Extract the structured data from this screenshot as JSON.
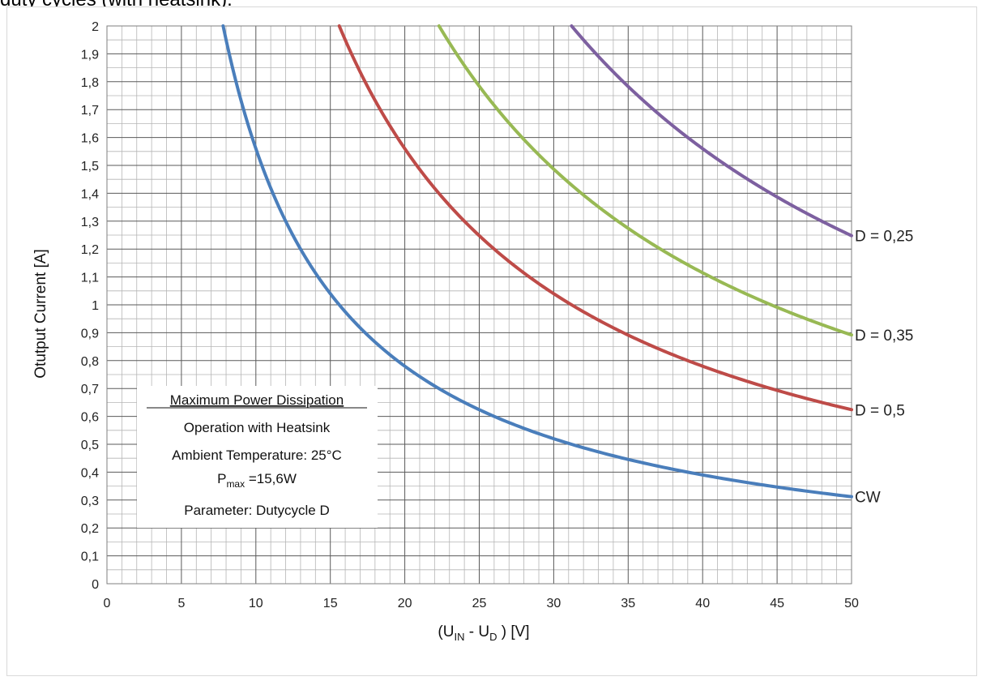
{
  "caption": "duty cycles (with heatsink).",
  "chart_data": {
    "type": "line",
    "xlabel": {
      "pre": "(U",
      "sub1": "IN",
      "mid": " - U",
      "sub2": "D",
      "post": " ) [V]"
    },
    "ylabel": "Otutput Current [A]",
    "xlim": [
      0,
      50
    ],
    "ylim": [
      0,
      2
    ],
    "x_ticks": [
      "0",
      "5",
      "10",
      "15",
      "20",
      "25",
      "30",
      "35",
      "40",
      "45",
      "50"
    ],
    "y_ticks": [
      "0",
      "0,1",
      "0,2",
      "0,3",
      "0,4",
      "0,5",
      "0,6",
      "0,7",
      "0,8",
      "0,9",
      "1",
      "1,1",
      "1,2",
      "1,3",
      "1,4",
      "1,5",
      "1,6",
      "1,7",
      "1,8",
      "1,9",
      "2"
    ],
    "grid": true,
    "legend": "curve end labels (right)",
    "series": [
      {
        "name": "CW",
        "color": "#4a7ebb",
        "power_w": 15.6,
        "x_start": 7.8,
        "x_end": 50,
        "y_at_x_end": 0.312
      },
      {
        "name": "D = 0,5",
        "color": "#be4b48",
        "power_w": 31.2,
        "x_start": 15.6,
        "x_end": 50,
        "y_at_x_end": 0.624
      },
      {
        "name": "D = 0,35",
        "color": "#98b954",
        "power_w": 44.6,
        "x_start": 22.3,
        "x_end": 50,
        "y_at_x_end": 0.892
      },
      {
        "name": "D = 0,25",
        "color": "#7d60a0",
        "power_w": 62.4,
        "x_start": 31.2,
        "x_end": 50,
        "y_at_x_end": 1.248
      }
    ],
    "annotation": {
      "title": "Maximum Power Dissipation",
      "line2": "Operation with Heatsink",
      "line3": "Ambient Temperature: 25°C",
      "pmax_p": "P",
      "pmax_sub": "max",
      "pmax_rest": " =15,6W",
      "param": "Parameter: Dutycycle D"
    }
  }
}
